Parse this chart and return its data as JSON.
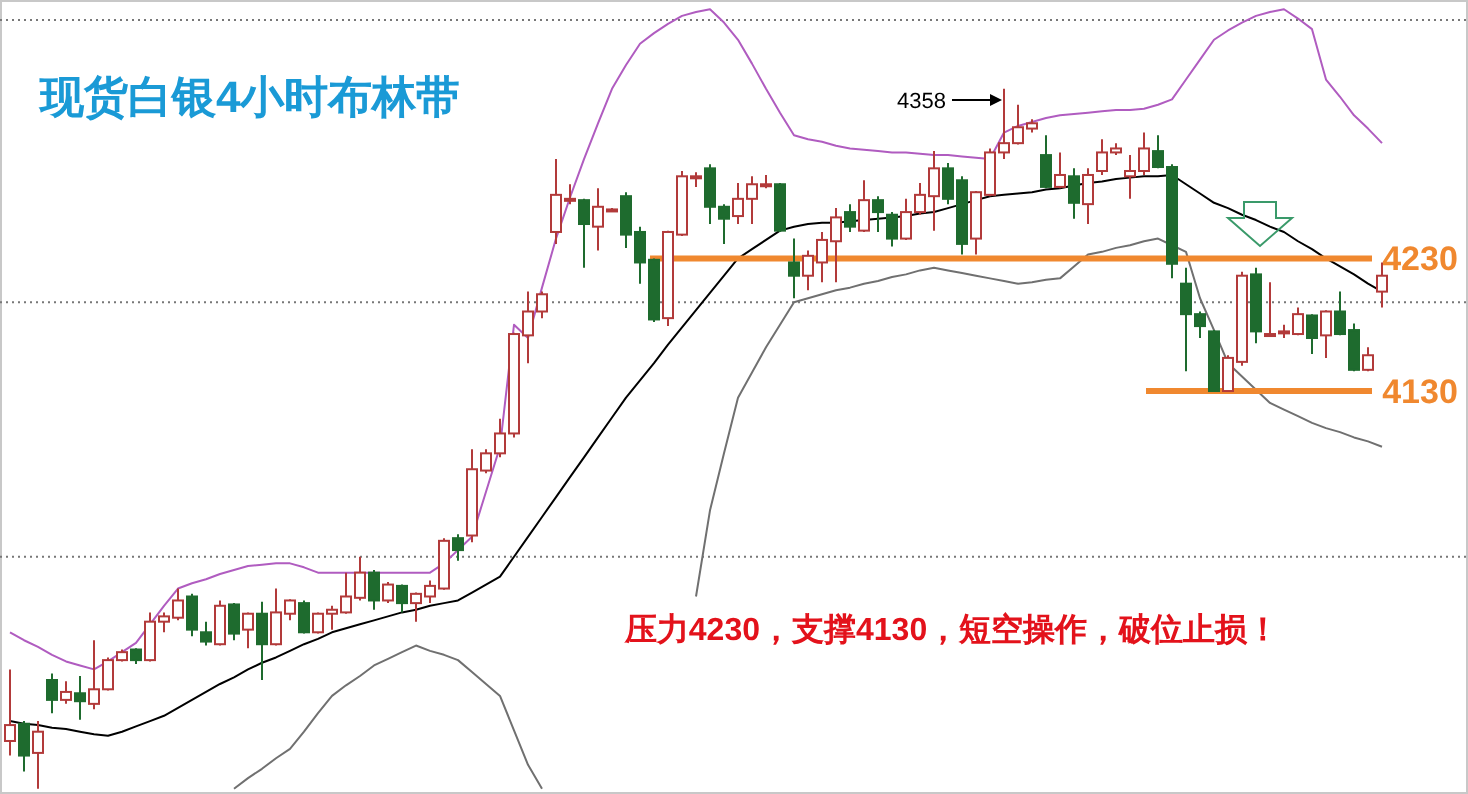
{
  "chart_data": {
    "type": "candlestick",
    "title": "现货白银4小时布林带",
    "categories": [
      null,
      null,
      null,
      null,
      null,
      null,
      null,
      null,
      null,
      null,
      null,
      null,
      null,
      null,
      null,
      null,
      null,
      null,
      null,
      null,
      null,
      null,
      null,
      null,
      null,
      null,
      null,
      null,
      null,
      null,
      null,
      null,
      null,
      null,
      null,
      null,
      null,
      null,
      null,
      null,
      null,
      null,
      null,
      null,
      null,
      null,
      null,
      null,
      null,
      null,
      null,
      null,
      null,
      null,
      null,
      null,
      null,
      null,
      null,
      null,
      null,
      null,
      null,
      null,
      null,
      null,
      null,
      null,
      null,
      null,
      null,
      null,
      null,
      null,
      null,
      null,
      null,
      null,
      null,
      null,
      null,
      null,
      null,
      null,
      null,
      null,
      null,
      null,
      null,
      null,
      null,
      null,
      null,
      null,
      null,
      null,
      null,
      null,
      null
    ],
    "ohlc": [
      [
        3866,
        3920,
        3855,
        3878
      ],
      [
        3879,
        3881,
        3843,
        3855
      ],
      [
        3857,
        3881,
        3830,
        3873
      ],
      [
        3912,
        3917,
        3887,
        3897
      ],
      [
        3897,
        3911,
        3894,
        3903
      ],
      [
        3902,
        3915,
        3882,
        3896
      ],
      [
        3894,
        3942,
        3890,
        3905
      ],
      [
        3905,
        3929,
        3904,
        3927
      ],
      [
        3927,
        3935,
        3926,
        3933
      ],
      [
        3935,
        3936,
        3924,
        3927
      ],
      [
        3927,
        3963,
        3926,
        3956
      ],
      [
        3956,
        3963,
        3948,
        3960
      ],
      [
        3959,
        3981,
        3957,
        3972
      ],
      [
        3975,
        3977,
        3945,
        3950
      ],
      [
        3948,
        3956,
        3938,
        3941
      ],
      [
        3939,
        3972,
        3938,
        3968
      ],
      [
        3969,
        3970,
        3942,
        3947
      ],
      [
        3950,
        3963,
        3936,
        3962
      ],
      [
        3962,
        3971,
        3912,
        3939
      ],
      [
        3939,
        3981,
        3938,
        3963
      ],
      [
        3962,
        3973,
        3957,
        3972
      ],
      [
        3970,
        3972,
        3947,
        3948
      ],
      [
        3948,
        3963,
        3947,
        3962
      ],
      [
        3962,
        3968,
        3950,
        3965
      ],
      [
        3963,
        3993,
        3962,
        3975
      ],
      [
        3974,
        4005,
        3972,
        3993
      ],
      [
        3993,
        3995,
        3965,
        3972
      ],
      [
        3972,
        3986,
        3970,
        3984
      ],
      [
        3983,
        3984,
        3963,
        3970
      ],
      [
        3970,
        3978,
        3956,
        3977
      ],
      [
        3975,
        3987,
        3970,
        3983
      ],
      [
        3981,
        4019,
        3980,
        4017
      ],
      [
        4019,
        4022,
        4002,
        4010
      ],
      [
        4021,
        4086,
        4016,
        4071
      ],
      [
        4070,
        4086,
        4068,
        4083
      ],
      [
        4083,
        4109,
        4080,
        4098
      ],
      [
        4098,
        4174,
        4095,
        4173
      ],
      [
        4172,
        4205,
        4151,
        4190
      ],
      [
        4190,
        4205,
        4185,
        4203
      ],
      [
        4250,
        4305,
        4241,
        4278
      ],
      [
        4275,
        4286,
        4271,
        4275
      ],
      [
        4274,
        4275,
        4223,
        4256
      ],
      [
        4254,
        4283,
        4236,
        4269
      ],
      [
        4267,
        4268,
        4266,
        4267
      ],
      [
        4277,
        4280,
        4238,
        4248
      ],
      [
        4250,
        4254,
        4211,
        4227
      ],
      [
        4229,
        4230,
        4182,
        4184
      ],
      [
        4185,
        4251,
        4179,
        4250
      ],
      [
        4248,
        4296,
        4247,
        4292
      ],
      [
        4291,
        4295,
        4284,
        4292
      ],
      [
        4298,
        4301,
        4256,
        4269
      ],
      [
        4269,
        4271,
        4241,
        4260
      ],
      [
        4262,
        4287,
        4256,
        4275
      ],
      [
        4275,
        4292,
        4256,
        4286
      ],
      [
        4285,
        4293,
        4283,
        4286
      ],
      [
        4286,
        4287,
        4250,
        4251
      ],
      [
        4227,
        4245,
        4200,
        4217
      ],
      [
        4217,
        4236,
        4206,
        4232
      ],
      [
        4227,
        4250,
        4212,
        4244
      ],
      [
        4243,
        4268,
        4212,
        4261
      ],
      [
        4265,
        4271,
        4250,
        4254
      ],
      [
        4251,
        4289,
        4250,
        4274
      ],
      [
        4274,
        4277,
        4250,
        4265
      ],
      [
        4263,
        4265,
        4239,
        4245
      ],
      [
        4245,
        4275,
        4244,
        4265
      ],
      [
        4265,
        4287,
        4263,
        4278
      ],
      [
        4277,
        4311,
        4251,
        4298
      ],
      [
        4298,
        4302,
        4271,
        4275
      ],
      [
        4289,
        4292,
        4233,
        4241
      ],
      [
        4245,
        4281,
        4233,
        4280
      ],
      [
        4278,
        4313,
        4277,
        4310
      ],
      [
        4310,
        4358,
        4305,
        4317
      ],
      [
        4317,
        4346,
        4316,
        4329
      ],
      [
        4328,
        4335,
        4325,
        4332
      ],
      [
        4308,
        4323,
        4283,
        4284
      ],
      [
        4284,
        4310,
        4283,
        4293
      ],
      [
        4292,
        4298,
        4260,
        4272
      ],
      [
        4271,
        4298,
        4256,
        4293
      ],
      [
        4296,
        4320,
        4293,
        4310
      ],
      [
        4310,
        4317,
        4308,
        4313
      ],
      [
        4292,
        4308,
        4275,
        4296
      ],
      [
        4296,
        4325,
        4293,
        4313
      ],
      [
        4311,
        4323,
        4298,
        4299
      ],
      [
        4299,
        4301,
        4215,
        4226
      ],
      [
        4211,
        4223,
        4145,
        4188
      ],
      [
        4188,
        4190,
        4170,
        4179
      ],
      [
        4175,
        4176,
        4130,
        4130
      ],
      [
        4130,
        4157,
        4130,
        4155
      ],
      [
        4152,
        4220,
        4149,
        4217
      ],
      [
        4218,
        4223,
        4166,
        4175
      ],
      [
        4173,
        4212,
        4172,
        4173
      ],
      [
        4175,
        4180,
        4170,
        4175
      ],
      [
        4173,
        4193,
        4172,
        4188
      ],
      [
        4187,
        4188,
        4158,
        4170
      ],
      [
        4172,
        4191,
        4155,
        4190
      ],
      [
        4190,
        4205,
        4172,
        4173
      ],
      [
        4176,
        4181,
        4145,
        4146
      ],
      [
        4146,
        4163,
        4145,
        4157
      ],
      [
        4205,
        4227,
        4193,
        4217
      ]
    ],
    "series": [
      {
        "type": "line",
        "color": "#b05cc0",
        "values": [
          3948,
          3942,
          3937,
          3931,
          3926,
          3923,
          3920,
          3926,
          3933,
          3940,
          3954,
          3968,
          3981,
          3985,
          3988,
          3992,
          3995,
          3998,
          3999,
          4000,
          4000,
          3997,
          3993,
          3993,
          3993,
          3993,
          3993,
          3993,
          3993,
          3993,
          3993,
          4000,
          4010,
          4020,
          4054,
          4088,
          4180,
          4170,
          4208,
          4245,
          4276,
          4305,
          4332,
          4358,
          4376,
          4392,
          4400,
          4407,
          4413,
          4416,
          4418,
          4408,
          4395,
          4377,
          4358,
          4340,
          4323,
          4320,
          4318,
          4315,
          4313,
          4312,
          4311,
          4310,
          4310,
          4309,
          4308,
          4308,
          4307,
          4306,
          4305,
          4325,
          4330,
          4333,
          4336,
          4338,
          4339,
          4340,
          4341,
          4342,
          4342,
          4343,
          4346,
          4350,
          4365,
          4380,
          4395,
          4402,
          4408,
          4413,
          4416,
          4418,
          4411,
          4403,
          4365,
          4352,
          4338,
          4328,
          4317
        ]
      },
      {
        "type": "line",
        "color": "#000000",
        "values": [
          3881,
          3879,
          3878,
          3876,
          3875,
          3873,
          3871,
          3870,
          3873,
          3877,
          3881,
          3885,
          3891,
          3897,
          3903,
          3909,
          3914,
          3920,
          3925,
          3929,
          3934,
          3939,
          3943,
          3948,
          3951,
          3954,
          3957,
          3960,
          3963,
          3965,
          3968,
          3970,
          3972,
          3978,
          3984,
          3990,
          4005,
          4020,
          4035,
          4050,
          4065,
          4080,
          4095,
          4110,
          4125,
          4138,
          4151,
          4165,
          4178,
          4191,
          4204,
          4217,
          4230,
          4237,
          4244,
          4251,
          4254,
          4256,
          4257,
          4257,
          4258,
          4259,
          4260,
          4261,
          4262,
          4264,
          4265,
          4268,
          4271,
          4274,
          4277,
          4278,
          4279,
          4280,
          4282,
          4283,
          4285,
          4287,
          4288,
          4290,
          4291,
          4292,
          4292,
          4293,
          4286,
          4279,
          4272,
          4268,
          4263,
          4259,
          4254,
          4250,
          4243,
          4237,
          4230,
          4224,
          4218,
          4211,
          4205
        ]
      },
      {
        "type": "line",
        "color": "#707070",
        "values": [
          null,
          null,
          null,
          null,
          null,
          null,
          null,
          null,
          null,
          null,
          null,
          null,
          null,
          null,
          null,
          null,
          3830,
          3838,
          3845,
          3853,
          3860,
          3873,
          3887,
          3900,
          3908,
          3915,
          3923,
          3928,
          3933,
          3938,
          3934,
          3931,
          3927,
          3918,
          3909,
          3900,
          3874,
          3848,
          3830,
          null,
          null,
          null,
          null,
          null,
          null,
          null,
          null,
          null,
          null,
          3975,
          4040,
          4083,
          4125,
          4144,
          4163,
          4180,
          4197,
          4200,
          4203,
          4206,
          4208,
          4211,
          4213,
          4216,
          4218,
          4221,
          4223,
          4221,
          4219,
          4217,
          4215,
          4213,
          4211,
          4212,
          4214,
          4215,
          4224,
          4233,
          4235,
          4238,
          4240,
          4243,
          4245,
          4240,
          4235,
          4200,
          4176,
          4151,
          4141,
          4131,
          4121,
          4116,
          4111,
          4106,
          4102,
          4099,
          4095,
          4092,
          4088
        ]
      }
    ],
    "ylim": [
      3826,
      4425
    ],
    "yticks": [
      {
        "value": 4410,
        "label": null
      },
      {
        "value": 4230,
        "label": "4230"
      },
      {
        "value": 4197,
        "label": null
      },
      {
        "value": 4130,
        "label": "4130"
      },
      {
        "value": 4005,
        "label": null
      }
    ],
    "grid": "y",
    "tick_labels": "y",
    "ref_lines": [
      {
        "axis": "y",
        "value": 4230,
        "color": "#f0882f"
      },
      {
        "axis": "y",
        "value": 4130,
        "color": "#f0882f"
      }
    ],
    "annotations": [
      "4358",
      "压力4230，支撑4130，短空操作，破位止损！"
    ]
  }
}
